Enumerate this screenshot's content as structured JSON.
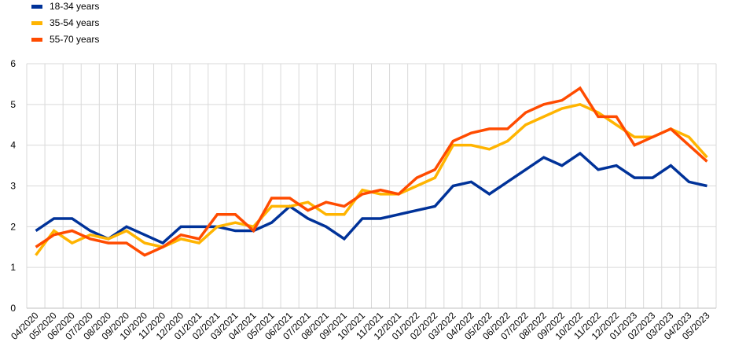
{
  "chart_data": {
    "type": "line",
    "title": "",
    "xlabel": "",
    "ylabel": "",
    "ylim": [
      0,
      6
    ],
    "yticks": [
      0,
      1,
      2,
      3,
      4,
      5,
      6
    ],
    "grid": "both",
    "legend_position": "top-left",
    "categories": [
      "04/2020",
      "05/2020",
      "06/2020",
      "07/2020",
      "08/2020",
      "09/2020",
      "10/2020",
      "11/2020",
      "12/2020",
      "01/2021",
      "02/2021",
      "03/2021",
      "04/2021",
      "05/2021",
      "06/2021",
      "07/2021",
      "08/2021",
      "09/2021",
      "10/2021",
      "11/2021",
      "12/2021",
      "01/2022",
      "02/2022",
      "03/2022",
      "04/2022",
      "05/2022",
      "06/2022",
      "07/2022",
      "08/2022",
      "09/2022",
      "10/2022",
      "11/2022",
      "12/2022",
      "01/2023",
      "02/2023",
      "03/2023",
      "04/2023",
      "05/2023"
    ],
    "series": [
      {
        "name": "18-34 years",
        "color": "#003299",
        "values": [
          1.9,
          2.2,
          2.2,
          1.9,
          1.7,
          2.0,
          1.8,
          1.6,
          2.0,
          2.0,
          2.0,
          1.9,
          1.9,
          2.1,
          2.5,
          2.2,
          2.0,
          1.7,
          2.2,
          2.2,
          2.3,
          2.4,
          2.5,
          3.0,
          3.1,
          2.8,
          3.1,
          3.4,
          3.7,
          3.5,
          3.8,
          3.4,
          3.5,
          3.2,
          3.2,
          3.5,
          3.1,
          3.0
        ]
      },
      {
        "name": "35-54 years",
        "color": "#FFB400",
        "values": [
          1.3,
          1.9,
          1.6,
          1.8,
          1.7,
          1.9,
          1.6,
          1.5,
          1.7,
          1.6,
          2.0,
          2.1,
          2.0,
          2.5,
          2.5,
          2.6,
          2.3,
          2.3,
          2.9,
          2.8,
          2.8,
          3.0,
          3.2,
          4.0,
          4.0,
          3.9,
          4.1,
          4.5,
          4.7,
          4.9,
          5.0,
          4.8,
          4.5,
          4.2,
          4.2,
          4.4,
          4.2,
          3.7
        ]
      },
      {
        "name": "55-70 years",
        "color": "#FF4B00",
        "values": [
          1.5,
          1.8,
          1.9,
          1.7,
          1.6,
          1.6,
          1.3,
          1.5,
          1.8,
          1.7,
          2.3,
          2.3,
          1.9,
          2.7,
          2.7,
          2.4,
          2.6,
          2.5,
          2.8,
          2.9,
          2.8,
          3.2,
          3.4,
          4.1,
          4.3,
          4.4,
          4.4,
          4.8,
          5.0,
          5.1,
          5.4,
          4.7,
          4.7,
          4.0,
          4.2,
          4.4,
          4.0,
          3.6
        ]
      }
    ]
  }
}
